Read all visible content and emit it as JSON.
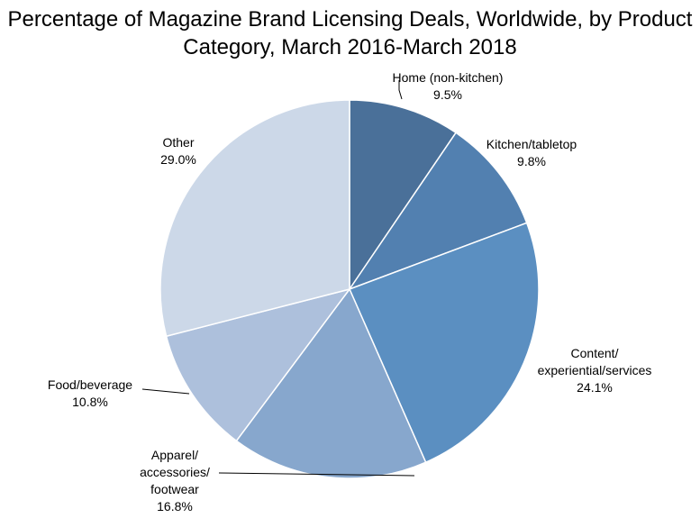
{
  "chart_data": {
    "type": "pie",
    "title": "Percentage of Magazine Brand Licensing Deals, Worldwide, by Product Category, March 2016-March 2018",
    "title_lines": [
      "Percentage of Magazine Brand Licensing Deals, Worldwide, by Product",
      "Category, March 2016-March 2018"
    ],
    "slices": [
      {
        "label": "Home (non-kitchen)",
        "label_lines": [
          "Home (non-kitchen)"
        ],
        "value": 9.5,
        "value_label": "9.5%",
        "color": "#4a7099"
      },
      {
        "label": "Kitchen/tabletop",
        "label_lines": [
          "Kitchen/tabletop"
        ],
        "value": 9.8,
        "value_label": "9.8%",
        "color": "#5280b0"
      },
      {
        "label": "Content/ experiential/services",
        "label_lines": [
          "Content/",
          "experiential/services"
        ],
        "value": 24.1,
        "value_label": "24.1%",
        "color": "#5b8fc1"
      },
      {
        "label": "Apparel/ accessories/ footwear",
        "label_lines": [
          "Apparel/",
          "accessories/",
          "footwear"
        ],
        "value": 16.8,
        "value_label": "16.8%",
        "color": "#87a7cd"
      },
      {
        "label": "Food/beverage",
        "label_lines": [
          "Food/beverage"
        ],
        "value": 10.8,
        "value_label": "10.8%",
        "color": "#adc0dc"
      },
      {
        "label": "Other",
        "label_lines": [
          "Other"
        ],
        "value": 29.0,
        "value_label": "29.0%",
        "color": "#ccd8e8"
      }
    ],
    "start_angle": "12 o'clock",
    "direction": "clockwise",
    "slice_border_color": "#ffffff",
    "legend": "none"
  }
}
